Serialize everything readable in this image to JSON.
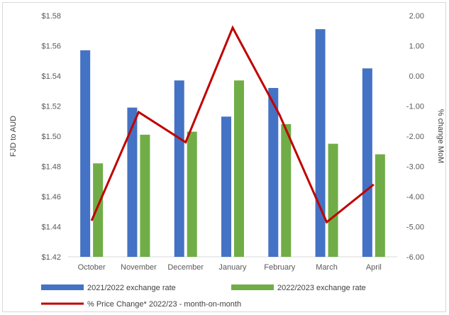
{
  "chart_data": {
    "type": "bar",
    "categories": [
      "October",
      "November",
      "December",
      "January",
      "February",
      "March",
      "April"
    ],
    "series": [
      {
        "name": "2021/2022 exchange rate",
        "kind": "bar",
        "axis": "left",
        "color": "#4472c4",
        "values": [
          1.557,
          1.519,
          1.537,
          1.513,
          1.532,
          1.571,
          1.545
        ]
      },
      {
        "name": "2022/2023 exchange rate",
        "kind": "bar",
        "axis": "left",
        "color": "#70ad47",
        "values": [
          1.482,
          1.501,
          1.503,
          1.537,
          1.508,
          1.495,
          1.488
        ]
      },
      {
        "name": "% Price Change* 2022/23 - month-on-month",
        "kind": "line",
        "axis": "right",
        "color": "#c00000",
        "values": [
          -4.8,
          -1.2,
          -2.2,
          1.6,
          -1.3,
          -4.85,
          -3.6
        ]
      }
    ],
    "ylabel": "FJD to AUD",
    "y2label": "% change MoM",
    "ylim": [
      1.42,
      1.58
    ],
    "y2lim": [
      -6.0,
      2.0
    ],
    "yticks": [
      "$1.42",
      "$1.44",
      "$1.46",
      "$1.48",
      "$1.50",
      "$1.52",
      "$1.54",
      "$1.56",
      "$1.58"
    ],
    "y2ticks": [
      "-6.00",
      "-5.00",
      "-4.00",
      "-3.00",
      "-2.00",
      "-1.00",
      "0.00",
      "1.00",
      "2.00"
    ],
    "grid": false,
    "legend_position": "bottom"
  }
}
